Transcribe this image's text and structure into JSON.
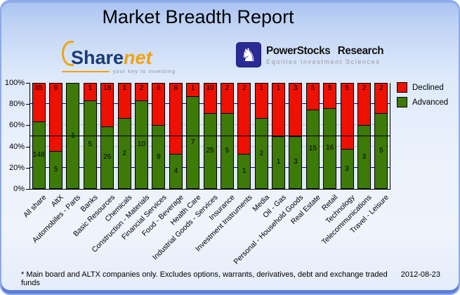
{
  "header": {
    "title": "Market Breadth Report"
  },
  "logos": {
    "sharenet": {
      "part1": "Share",
      "part2": "net",
      "tagline": "your key to investing"
    },
    "powerstocks": {
      "line1": "PowerStocks Research",
      "line2": "Equities Investment Sciences",
      "icon": "knight-icon",
      "icon_glyph": "♞"
    }
  },
  "chart_data": {
    "type": "bar",
    "subtype": "percent-stacked-vertical",
    "title": "",
    "categories": [
      "All share",
      "AltX",
      "Automobiles - Parts",
      "Banks",
      "Basic Resources",
      "Chemicals",
      "Construction - Materials",
      "Financial Services",
      "Food - Beverage",
      "Health Care",
      "Industrial Goods - Services",
      "Insurance",
      "Investment Instruments",
      "Media",
      "Oil - Gas",
      "Personal - Household Goods",
      "Real Estate",
      "Retail",
      "Technology",
      "Telecommunications",
      "Travel - Leisure"
    ],
    "series": [
      {
        "name": "Declined",
        "color": "#ee1100",
        "values": [
          85,
          9,
          0,
          1,
          18,
          1,
          2,
          6,
          8,
          1,
          10,
          2,
          2,
          1,
          1,
          3,
          5,
          5,
          5,
          2,
          2
        ]
      },
      {
        "name": "Advanced",
        "color": "#3e7a08",
        "values": [
          148,
          5,
          1,
          5,
          26,
          2,
          10,
          9,
          4,
          7,
          25,
          5,
          1,
          2,
          1,
          3,
          15,
          16,
          3,
          3,
          5
        ]
      }
    ],
    "ylabel": "",
    "xlabel": "",
    "ylim": [
      0,
      100
    ],
    "y_ticks": [
      "0%",
      "20%",
      "40%",
      "60%",
      "80%",
      "100%"
    ],
    "legend_position": "right",
    "plot_bg": "#dfe9f7",
    "gridlines": [
      {
        "level": 20,
        "color": "navy"
      },
      {
        "level": 40,
        "color": "gray"
      },
      {
        "level": 50,
        "color": "black"
      },
      {
        "level": 60,
        "color": "gray"
      },
      {
        "level": 80,
        "color": "navy"
      }
    ],
    "grid_colors": {
      "navy": "#000080",
      "gray": "#c4c4c4",
      "black": "#000000"
    }
  },
  "footer": {
    "note": "* Main board and ALTX companies only. Excludes options, warrants, derivatives, debt and exchange traded funds",
    "date": "2012-08-23"
  }
}
